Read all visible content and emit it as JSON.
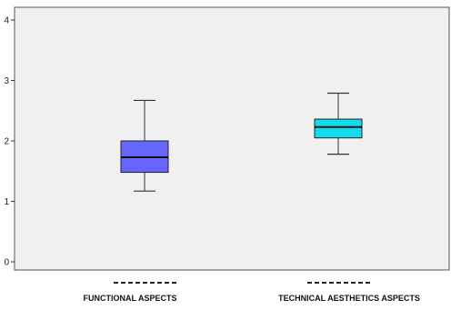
{
  "chart_data": {
    "type": "box",
    "categories": [
      "FUNCTIONAL  ASPECTS",
      "TECHNICAL  AESTHETICS  ASPECTS"
    ],
    "boxes": [
      {
        "category": "FUNCTIONAL  ASPECTS",
        "min": 1.17,
        "q1": 1.48,
        "median": 1.73,
        "q3": 2.0,
        "max": 2.67,
        "color": "#6666ff"
      },
      {
        "category": "TECHNICAL  AESTHETICS  ASPECTS",
        "min": 1.78,
        "q1": 2.05,
        "median": 2.23,
        "q3": 2.36,
        "max": 2.79,
        "color": "#11ddee"
      }
    ],
    "y_ticks": [
      "0",
      "1",
      "2",
      "3",
      "4"
    ],
    "ylim": [
      -0.2,
      4.3
    ],
    "grid": false,
    "plot_background": "#f0f0f0",
    "title": "",
    "xlabel": "",
    "ylabel": ""
  }
}
